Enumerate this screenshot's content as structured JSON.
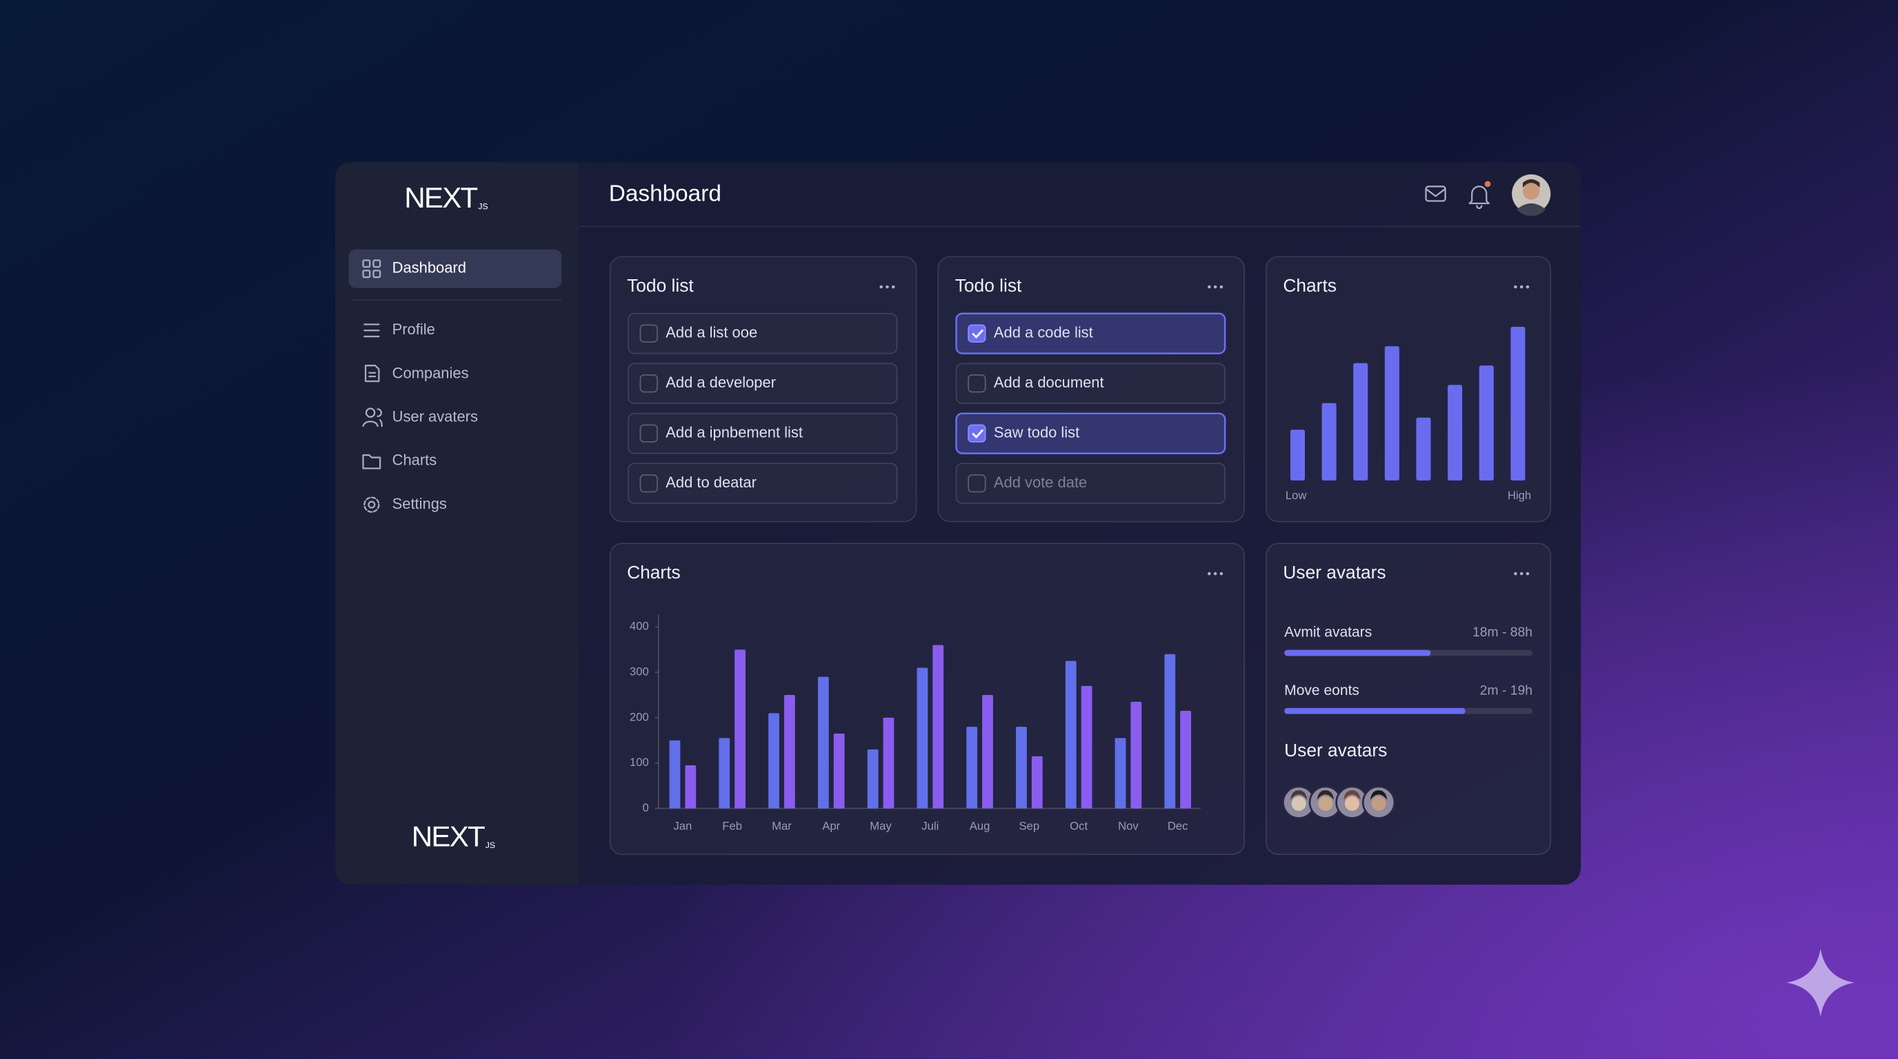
{
  "sidebar": {
    "logo": {
      "text": "NEXT",
      "suffix": "JS"
    },
    "nav": [
      "Dashboard",
      "Profile",
      "Companies",
      "User avaters",
      "Charts",
      "Settings"
    ],
    "footer_logo": {
      "text": "NEXT",
      "suffix": "JS"
    }
  },
  "header": {
    "title": "Dashboard"
  },
  "todo_lists": [
    {
      "title": "Todo list",
      "items": [
        {
          "label": "Add a list ooe",
          "checked": false
        },
        {
          "label": "Add a developer",
          "checked": false
        },
        {
          "label": "Add a ipnbement list",
          "checked": false
        },
        {
          "label": "Add to deatar",
          "checked": false
        }
      ]
    },
    {
      "title": "Todo list",
      "items": [
        {
          "label": "Add a code list",
          "checked": true
        },
        {
          "label": "Add a document",
          "checked": false
        },
        {
          "label": "Saw todo list",
          "checked": true
        },
        {
          "label": "Add vote date",
          "checked": false,
          "disabled": true
        }
      ]
    }
  ],
  "mini_chart": {
    "title": "Charts",
    "values": [
      42,
      64,
      97,
      111,
      52,
      79,
      95,
      127
    ],
    "color": "#6a6cf0",
    "low_label": "Low",
    "high_label": "High"
  },
  "main_chart": {
    "title": "Charts",
    "type": "bar",
    "categories": [
      "Jan",
      "Feb",
      "Mar",
      "Apr",
      "May",
      "Juli",
      "Aug",
      "Sep",
      "Oct",
      "Nov",
      "Dec"
    ],
    "series": [
      {
        "color": "#6170ea",
        "values": [
          150,
          155,
          210,
          290,
          130,
          310,
          180,
          180,
          325,
          155,
          340
        ]
      },
      {
        "color": "#8a5df0",
        "values": [
          95,
          350,
          250,
          165,
          200,
          360,
          250,
          115,
          270,
          235,
          215
        ]
      }
    ],
    "ylim": [
      0,
      400
    ],
    "yticks": [
      0,
      100,
      200,
      300,
      400
    ]
  },
  "user_avatars": {
    "title": "User avatars",
    "rows": [
      {
        "label": "Avmit avatars",
        "range": "18m - 88h",
        "progress": 59
      },
      {
        "label": "Move eonts",
        "range": "2m - 19h",
        "progress": 73
      }
    ],
    "subtitle": "User avatars"
  }
}
